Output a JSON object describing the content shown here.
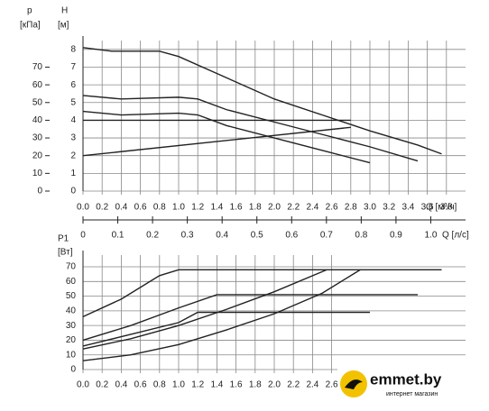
{
  "chart_data": [
    {
      "type": "line",
      "ylabel": "H",
      "yunit": "[м]",
      "y2label": "p",
      "y2unit": "[кПа]",
      "xlabel": "Q [м³/ч]",
      "xlim": [
        0,
        4
      ],
      "xticks": [
        {
          "value": 0,
          "label": "0.0"
        },
        0.2,
        0.4,
        0.6,
        0.8,
        {
          "value": 1,
          "label": "1.0"
        },
        1.2,
        1.4,
        1.6,
        1.8,
        {
          "value": 2,
          "label": "2.0"
        },
        2.2,
        2.4,
        2.6,
        2.8,
        {
          "value": 3,
          "label": "3.0"
        },
        3.2,
        3.4,
        3.6,
        3.8
      ],
      "ylim": [
        0,
        8.5
      ],
      "yticks": [
        0,
        1,
        2,
        3,
        4,
        5,
        6,
        7,
        8
      ],
      "y2lim": [
        0,
        85
      ],
      "y2ticks": [
        0,
        10,
        20,
        30,
        40,
        50,
        60,
        70
      ],
      "x2label": "Q [л/с]",
      "x2lim": [
        0,
        1.1
      ],
      "x2ticks": [
        0,
        0.1,
        0.2,
        0.3,
        0.4,
        0.5,
        0.6,
        0.7,
        0.8,
        0.9,
        {
          "value": 1,
          "label": "1.0"
        }
      ],
      "grid": true,
      "color": "#222222",
      "series": [
        {
          "x": [
            0,
            0.3,
            0.8,
            1.0,
            1.5,
            2.0,
            2.5,
            3.0,
            3.5,
            3.75
          ],
          "values": [
            8.1,
            7.9,
            7.9,
            7.6,
            6.4,
            5.2,
            4.3,
            3.4,
            2.6,
            2.1
          ]
        },
        {
          "x": [
            0,
            0.4,
            1.0,
            1.2,
            1.5,
            2.0,
            2.5,
            3.0,
            3.5
          ],
          "values": [
            5.4,
            5.2,
            5.3,
            5.2,
            4.6,
            3.9,
            3.2,
            2.5,
            1.7
          ]
        },
        {
          "x": [
            0,
            0.4,
            1.0,
            1.2,
            1.5,
            2.0,
            2.5,
            3.0
          ],
          "values": [
            4.5,
            4.3,
            4.4,
            4.3,
            3.7,
            3.0,
            2.3,
            1.6
          ]
        },
        {
          "x": [
            0,
            2.8
          ],
          "values": [
            4,
            4
          ]
        },
        {
          "x": [
            0,
            2.8
          ],
          "values": [
            2,
            3.6
          ]
        }
      ]
    },
    {
      "type": "line",
      "ylabel": "P1",
      "yunit": "[Вт]",
      "xlim": [
        0,
        4
      ],
      "xticks": [
        {
          "value": 0,
          "label": "0.0"
        },
        0.2,
        0.4,
        0.6,
        0.8,
        {
          "value": 1,
          "label": "1.0"
        },
        1.2,
        1.4,
        1.6,
        1.8,
        {
          "value": 2,
          "label": "2.0"
        },
        2.2,
        2.4,
        2.6
      ],
      "ylim": [
        0,
        78
      ],
      "yticks": [
        0,
        10,
        20,
        30,
        40,
        50,
        60,
        70
      ],
      "grid": true,
      "color": "#222222",
      "series": [
        {
          "x": [
            0,
            0.4,
            0.8,
            1.0,
            3.75
          ],
          "values": [
            36,
            48,
            64,
            68,
            68
          ]
        },
        {
          "x": [
            0,
            0.5,
            1.0,
            1.4,
            3.5
          ],
          "values": [
            20,
            30,
            42,
            51,
            51
          ]
        },
        {
          "x": [
            0,
            0.5,
            1.0,
            1.2,
            3.0
          ],
          "values": [
            16,
            24,
            32,
            39,
            39
          ]
        },
        {
          "x": [
            0,
            0.5,
            1.0,
            1.5,
            2.0,
            2.55
          ],
          "values": [
            14,
            21,
            30,
            41,
            53,
            68
          ]
        },
        {
          "x": [
            0,
            0.5,
            1.0,
            1.5,
            2.0,
            2.5,
            2.9
          ],
          "values": [
            6,
            10,
            17,
            27,
            38,
            52,
            68
          ]
        }
      ]
    }
  ],
  "watermark": {
    "name": "emmet.by",
    "tagline": "интернет магазин"
  }
}
